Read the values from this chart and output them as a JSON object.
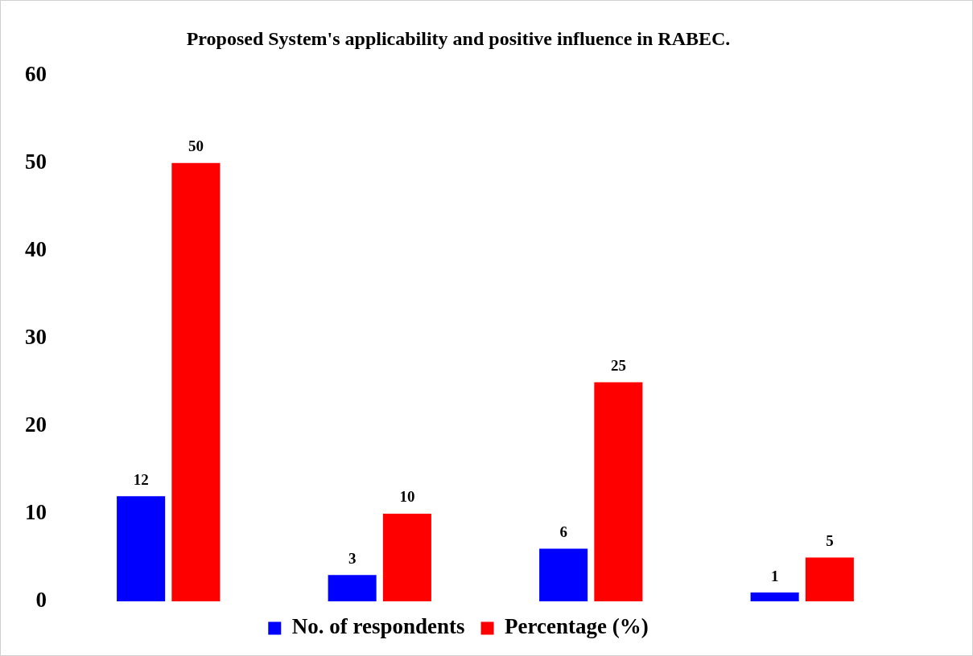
{
  "chart_data": {
    "type": "bar",
    "title": "Proposed System's applicability and positive influence in RABEC.",
    "categories": [
      null,
      null,
      null,
      null
    ],
    "series": [
      {
        "name": "No. of respondents",
        "color": "#0000ff",
        "values": [
          12,
          3,
          6,
          1
        ]
      },
      {
        "name": "Percentage (%)",
        "color": "#ff0000",
        "values": [
          50,
          10,
          25,
          5
        ]
      }
    ],
    "ylim": [
      0,
      60
    ],
    "yticks": [
      0,
      10,
      20,
      30,
      40,
      50,
      60
    ],
    "grid": false,
    "legend": "bottom",
    "data_labels": true,
    "tick_labels": "y"
  }
}
